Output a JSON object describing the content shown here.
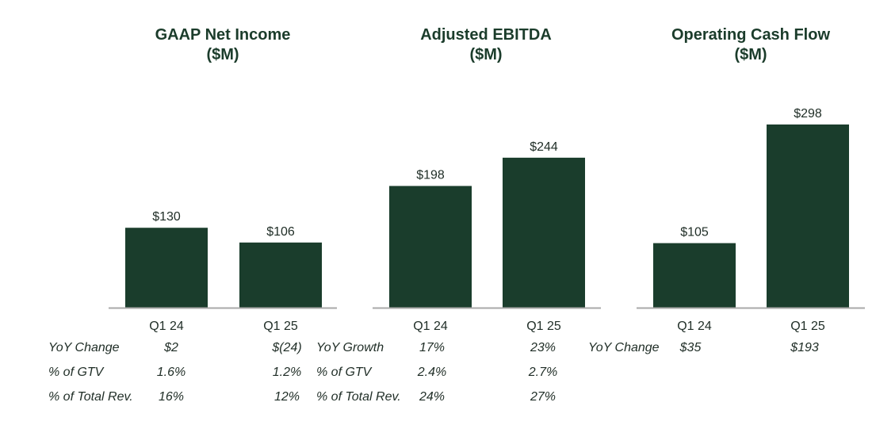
{
  "chart_data": [
    {
      "type": "bar",
      "title": "GAAP Net Income",
      "subtitle": "($M)",
      "categories": [
        "Q1 24",
        "Q1 25"
      ],
      "values": [
        130,
        106
      ],
      "value_labels": [
        "$130",
        "$106"
      ],
      "bar_color": "#1a3d2c",
      "metrics": [
        {
          "label": "YoY Change",
          "values": [
            "$2",
            "$(24)"
          ]
        },
        {
          "label": "% of GTV",
          "values": [
            "1.6%",
            "1.2%"
          ]
        },
        {
          "label": "% of Total Rev.",
          "values": [
            "16%",
            "12%"
          ]
        }
      ]
    },
    {
      "type": "bar",
      "title": "Adjusted EBITDA",
      "subtitle": "($M)",
      "categories": [
        "Q1 24",
        "Q1 25"
      ],
      "values": [
        198,
        244
      ],
      "value_labels": [
        "$198",
        "$244"
      ],
      "bar_color": "#1a3d2c",
      "metrics": [
        {
          "label": "YoY Growth",
          "values": [
            "17%",
            "23%"
          ]
        },
        {
          "label": "% of GTV",
          "values": [
            "2.4%",
            "2.7%"
          ]
        },
        {
          "label": "% of Total Rev.",
          "values": [
            "24%",
            "27%"
          ]
        }
      ]
    },
    {
      "type": "bar",
      "title": "Operating Cash Flow",
      "subtitle": "($M)",
      "categories": [
        "Q1 24",
        "Q1 25"
      ],
      "values": [
        105,
        298
      ],
      "value_labels": [
        "$105",
        "$298"
      ],
      "bar_color": "#1a3d2c",
      "metrics": [
        {
          "label": "YoY Change",
          "values": [
            "$35",
            "$193"
          ]
        }
      ]
    }
  ]
}
